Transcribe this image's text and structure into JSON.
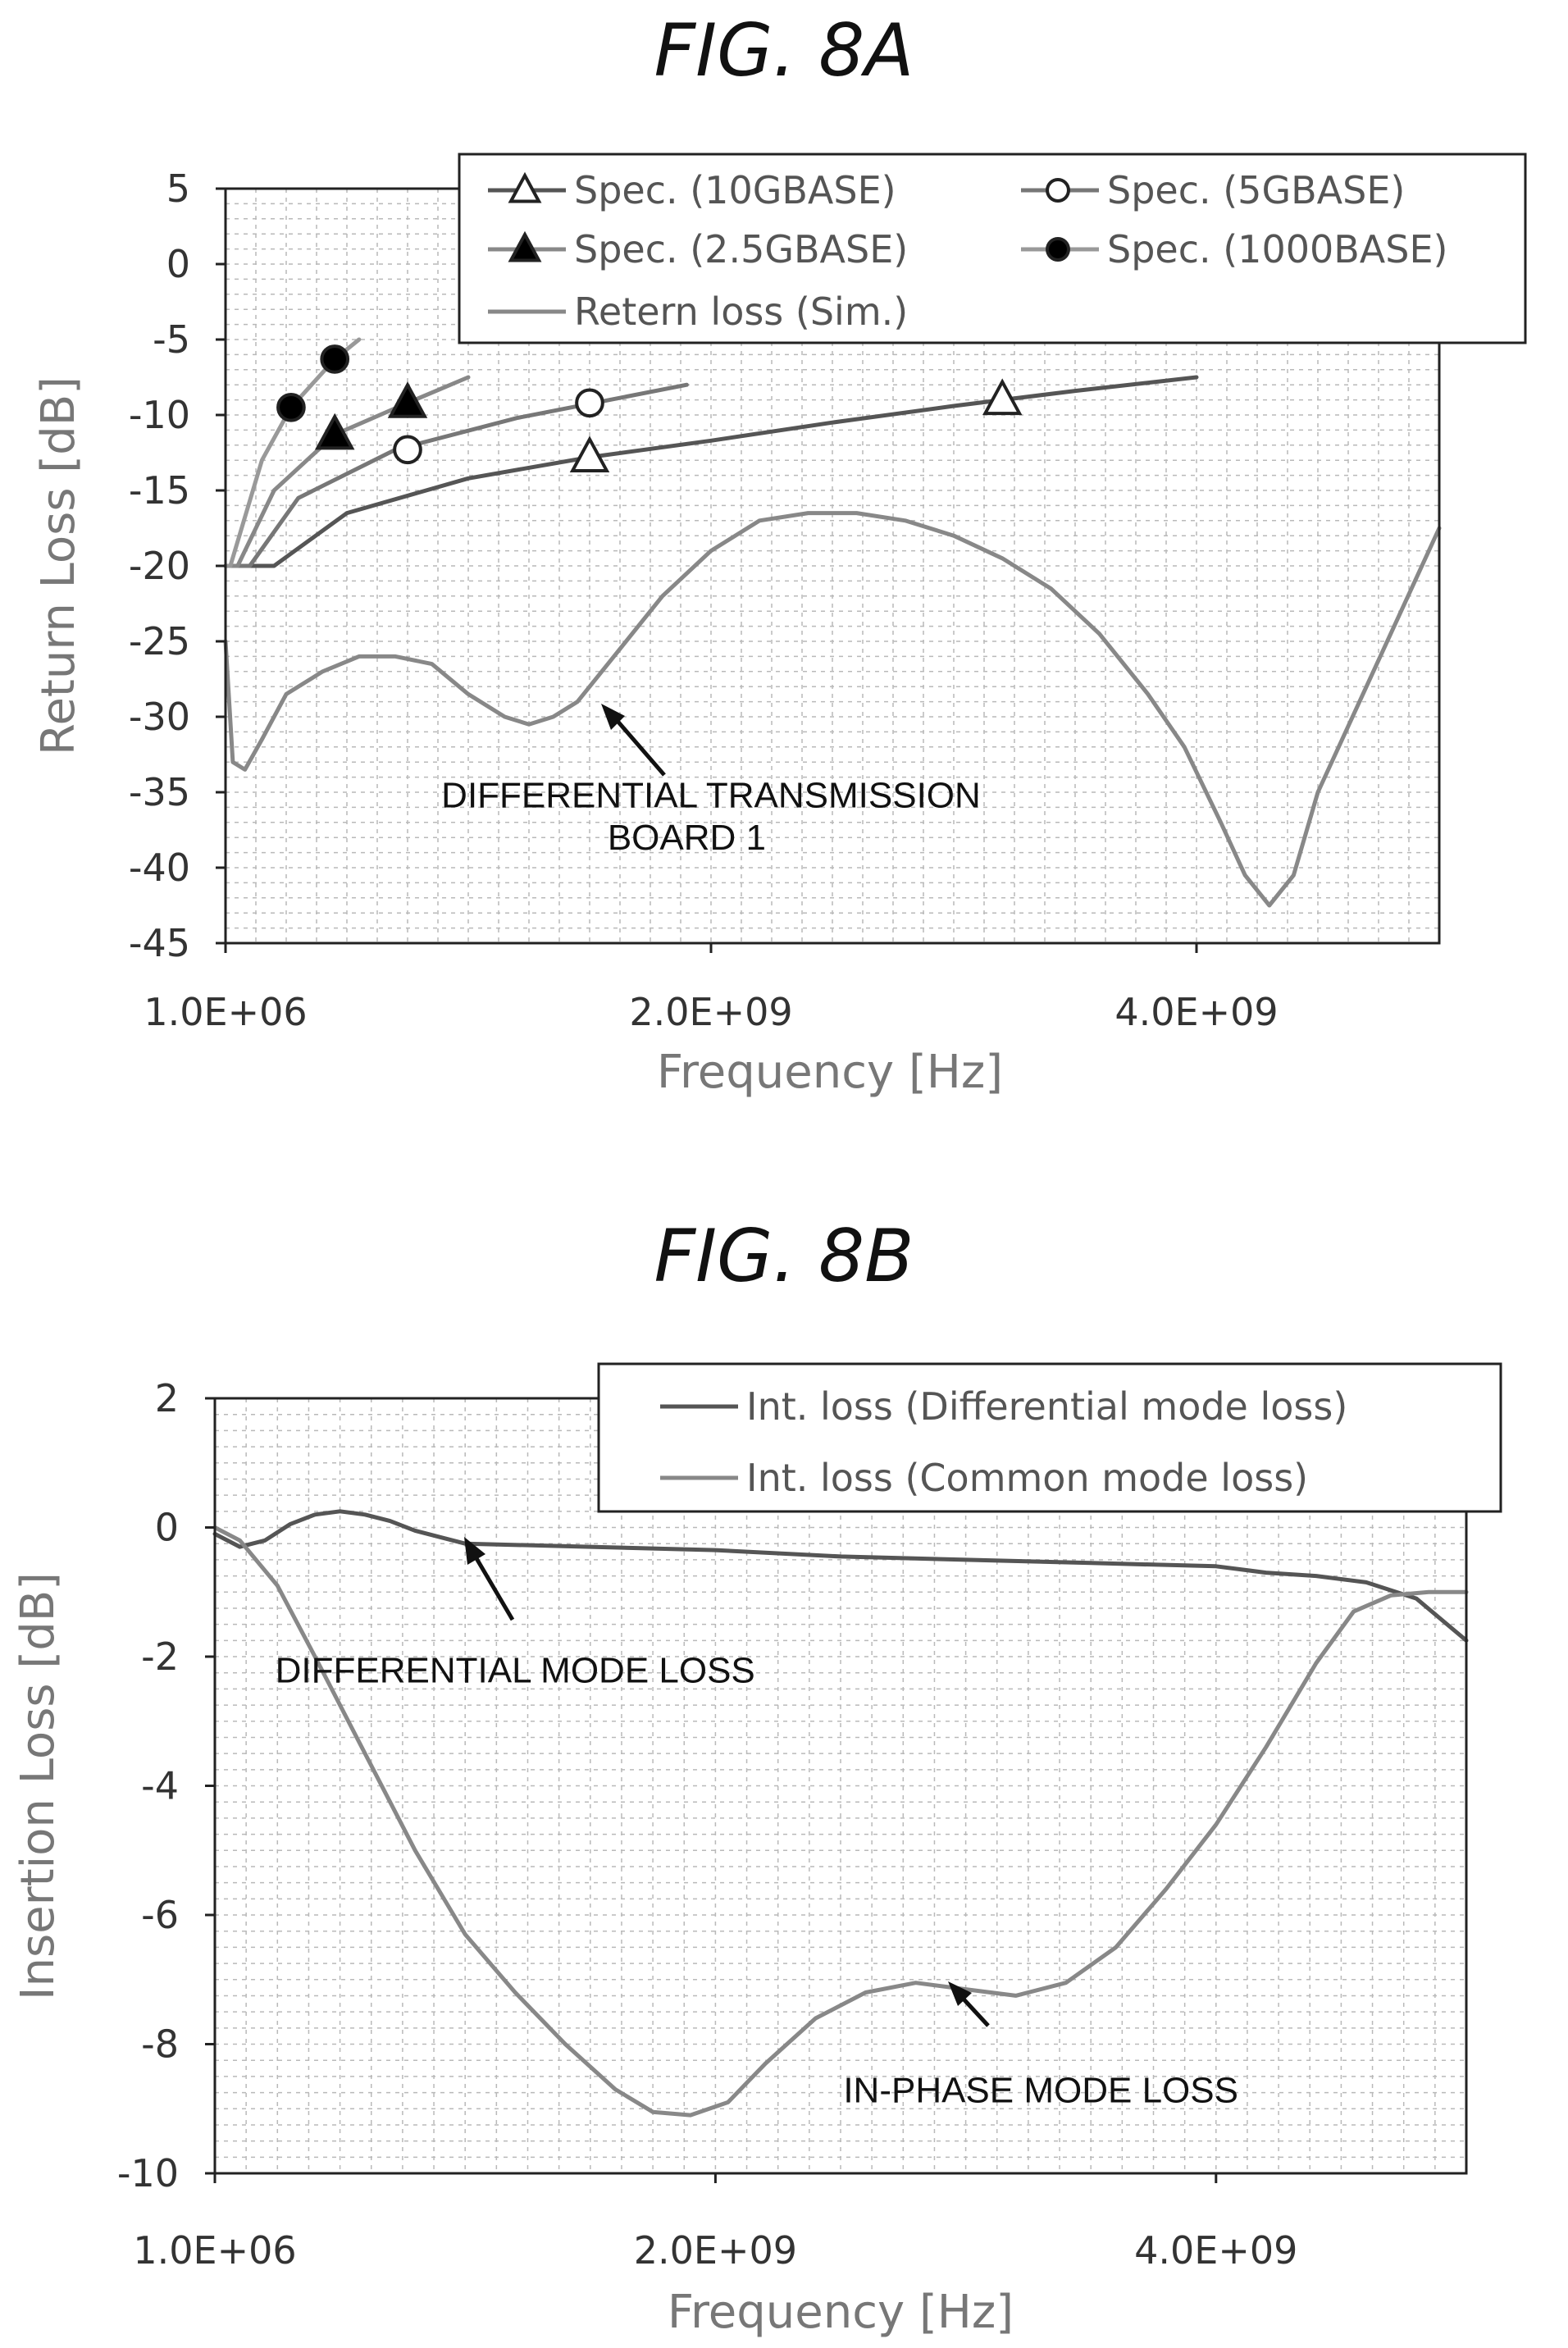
{
  "chart_data": [
    {
      "type": "line",
      "title": "FIG. 8A",
      "xlabel": "Frequency [Hz]",
      "ylabel": "Return Loss [dB]",
      "xlim": [
        0,
        5000000000.0
      ],
      "ylim": [
        -45,
        5
      ],
      "x_ticks": [
        {
          "value": 0,
          "label": "1.0E+06"
        },
        {
          "value": 2000000000.0,
          "label": "2.0E+09"
        },
        {
          "value": 4000000000.0,
          "label": "4.0E+09"
        }
      ],
      "y_ticks": [
        5,
        0,
        -5,
        -10,
        -15,
        -20,
        -25,
        -30,
        -35,
        -40,
        -45
      ],
      "grid": true,
      "legend_position": "top-right",
      "legend": [
        {
          "label": "Spec. (10GBASE)",
          "marker": "triangle-open"
        },
        {
          "label": "Spec. (5GBASE)",
          "marker": "circle-open"
        },
        {
          "label": "Spec. (2.5GBASE)",
          "marker": "triangle-filled"
        },
        {
          "label": "Spec. (1000BASE)",
          "marker": "circle-filled"
        },
        {
          "label": "Retern loss (Sim.)",
          "marker": "line"
        }
      ],
      "series": [
        {
          "name": "Spec. (10GBASE)",
          "color": "#555555",
          "marker": "triangle-open",
          "x": [
            0,
            200000000.0,
            500000000.0,
            1000000000.0,
            1500000000.0,
            2000000000.0,
            2500000000.0,
            3000000000.0,
            3500000000.0,
            4000000000.0
          ],
          "y": [
            -20,
            -20,
            -16.5,
            -14.2,
            -12.8,
            -11.7,
            -10.5,
            -9.4,
            -8.4,
            -7.5
          ],
          "markers": [
            {
              "x": 1500000000.0,
              "y": -12.8
            },
            {
              "x": 3200000000.0,
              "y": -9.0
            }
          ]
        },
        {
          "name": "Spec. (5GBASE)",
          "color": "#777777",
          "marker": "circle-open",
          "x": [
            0,
            100000000.0,
            300000000.0,
            700000000.0,
            1200000000.0,
            1900000000.0
          ],
          "y": [
            -20,
            -20,
            -15.5,
            -12.3,
            -10.2,
            -8.0
          ],
          "markers": [
            {
              "x": 750000000.0,
              "y": -12.3
            },
            {
              "x": 1500000000.0,
              "y": -9.2
            }
          ]
        },
        {
          "name": "Spec. (2.5GBASE)",
          "color": "#888888",
          "marker": "triangle-filled",
          "x": [
            0,
            50000000.0,
            200000000.0,
            450000000.0,
            750000000.0,
            1000000000.0
          ],
          "y": [
            -20,
            -20,
            -15.0,
            -11.3,
            -9.2,
            -7.5
          ],
          "markers": [
            {
              "x": 450000000.0,
              "y": -11.3
            },
            {
              "x": 750000000.0,
              "y": -9.2
            }
          ]
        },
        {
          "name": "Spec. (1000BASE)",
          "color": "#999999",
          "marker": "circle-filled",
          "x": [
            0,
            20000000.0,
            150000000.0,
            270000000.0,
            450000000.0,
            550000000.0
          ],
          "y": [
            -20,
            -20,
            -13.0,
            -9.5,
            -6.3,
            -5.0
          ],
          "markers": [
            {
              "x": 270000000.0,
              "y": -9.5
            },
            {
              "x": 450000000.0,
              "y": -6.3
            }
          ]
        },
        {
          "name": "Retern loss (Sim.)",
          "color": "#888888",
          "marker": "line",
          "x": [
            0,
            30000000.0,
            80000000.0,
            150000000.0,
            250000000.0,
            400000000.0,
            550000000.0,
            700000000.0,
            850000000.0,
            1000000000.0,
            1150000000.0,
            1250000000.0,
            1350000000.0,
            1450000000.0,
            1600000000.0,
            1800000000.0,
            2000000000.0,
            2200000000.0,
            2400000000.0,
            2600000000.0,
            2800000000.0,
            3000000000.0,
            3200000000.0,
            3400000000.0,
            3600000000.0,
            3800000000.0,
            3950000000.0,
            4100000000.0,
            4200000000.0,
            4300000000.0,
            4400000000.0,
            4500000000.0,
            4700000000.0,
            4900000000.0,
            5000000000.0
          ],
          "y": [
            -25,
            -33,
            -33.5,
            -31.5,
            -28.5,
            -27,
            -26,
            -26,
            -26.5,
            -28.5,
            -30,
            -30.5,
            -30,
            -29,
            -26,
            -22,
            -19,
            -17,
            -16.5,
            -16.5,
            -17,
            -18,
            -19.5,
            -21.5,
            -24.5,
            -28.5,
            -32,
            -37,
            -40.5,
            -42.5,
            -40.5,
            -35,
            -28,
            -21,
            -17.5
          ]
        }
      ],
      "annotations": [
        {
          "text": "DIFFERENTIAL TRANSMISSION",
          "x": 2000000000.0,
          "y": -36
        },
        {
          "text": "BOARD 1",
          "x": 1900000000.0,
          "y": -38.8
        }
      ]
    },
    {
      "type": "line",
      "title": "FIG. 8B",
      "xlabel": "Frequency [Hz]",
      "ylabel": "Insertion Loss [dB]",
      "xlim": [
        0,
        5000000000.0
      ],
      "ylim": [
        -10,
        2
      ],
      "x_ticks": [
        {
          "value": 0,
          "label": "1.0E+06"
        },
        {
          "value": 2000000000.0,
          "label": "2.0E+09"
        },
        {
          "value": 4000000000.0,
          "label": "4.0E+09"
        }
      ],
      "y_ticks": [
        2,
        0,
        -2,
        -4,
        -6,
        -8,
        -10
      ],
      "grid": true,
      "legend_position": "top-right",
      "legend": [
        {
          "label": "Int. loss (Differential mode loss)",
          "marker": "line"
        },
        {
          "label": "Int. loss (Common mode loss)",
          "marker": "line"
        }
      ],
      "series": [
        {
          "name": "Int. loss (Differential mode loss)",
          "color": "#555555",
          "x": [
            0,
            100000000.0,
            200000000.0,
            300000000.0,
            400000000.0,
            500000000.0,
            600000000.0,
            700000000.0,
            800000000.0,
            900000000.0,
            1000000000.0,
            1500000000.0,
            2000000000.0,
            2500000000.0,
            3000000000.0,
            3500000000.0,
            4000000000.0,
            4200000000.0,
            4400000000.0,
            4600000000.0,
            4800000000.0,
            5000000000.0
          ],
          "y": [
            -0.1,
            -0.3,
            -0.2,
            0.05,
            0.2,
            0.25,
            0.2,
            0.1,
            -0.05,
            -0.15,
            -0.25,
            -0.3,
            -0.35,
            -0.45,
            -0.5,
            -0.55,
            -0.6,
            -0.7,
            -0.75,
            -0.85,
            -1.1,
            -1.75
          ]
        },
        {
          "name": "Int. loss (Common mode loss)",
          "color": "#888888",
          "x": [
            0,
            100000000.0,
            250000000.0,
            400000000.0,
            600000000.0,
            800000000.0,
            1000000000.0,
            1200000000.0,
            1400000000.0,
            1600000000.0,
            1750000000.0,
            1900000000.0,
            2050000000.0,
            2200000000.0,
            2400000000.0,
            2600000000.0,
            2800000000.0,
            3000000000.0,
            3200000000.0,
            3400000000.0,
            3600000000.0,
            3800000000.0,
            4000000000.0,
            4200000000.0,
            4400000000.0,
            4550000000.0,
            4700000000.0,
            4850000000.0,
            5000000000.0
          ],
          "y": [
            0,
            -0.2,
            -0.9,
            -2.0,
            -3.5,
            -5.0,
            -6.3,
            -7.2,
            -8.0,
            -8.7,
            -9.05,
            -9.1,
            -8.9,
            -8.3,
            -7.6,
            -7.2,
            -7.05,
            -7.15,
            -7.25,
            -7.05,
            -6.5,
            -5.6,
            -4.6,
            -3.4,
            -2.1,
            -1.3,
            -1.05,
            -1.0,
            -1.0
          ]
        }
      ],
      "annotations": [
        {
          "text": "DIFFERENTIAL MODE LOSS",
          "x": 1200000000.0,
          "y": -2.4
        },
        {
          "text": "IN-PHASE MODE LOSS",
          "x": 3300000000.0,
          "y": -8.9
        }
      ]
    }
  ]
}
